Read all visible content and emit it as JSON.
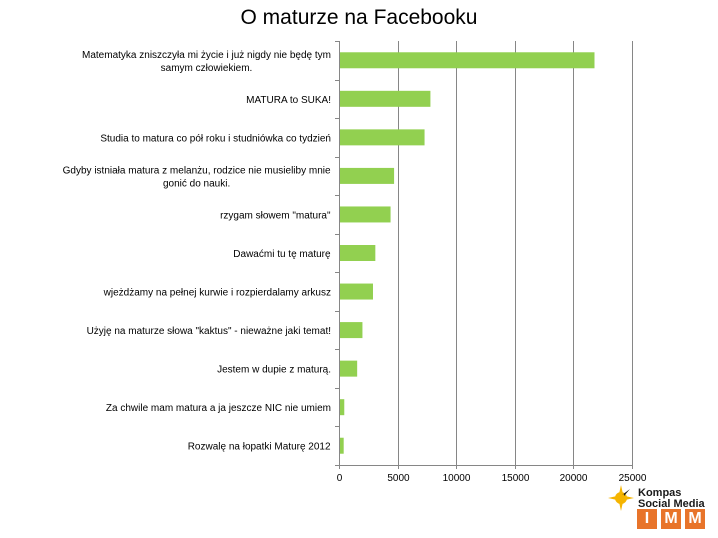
{
  "chart_data": {
    "type": "bar",
    "orientation": "horizontal",
    "title": "O maturze na Facebooku",
    "categories": [
      [
        "Matematyka zniszczyła mi życie i już nigdy nie będę tym",
        "samym człowiekiem."
      ],
      [
        "MATURA to SUKA!"
      ],
      [
        "Studia to matura co pół roku i studniówka co tydzień"
      ],
      [
        "Gdyby istniała matura z melanżu, rodzice nie musieliby mnie",
        "gonić do nauki."
      ],
      [
        "rzygam słowem \"matura\""
      ],
      [
        "Dawaćmi tu tę maturę"
      ],
      [
        "wjeżdżamy na pełnej kurwie i rozpierdalamy arkusz"
      ],
      [
        "Użyję na maturze słowa \"kaktus\" - nieważne jaki temat!"
      ],
      [
        "Jestem w dupie z maturą."
      ],
      [
        "Za chwile mam matura a ja jeszcze NIC nie umiem"
      ],
      [
        "Rozwalę na łopatki Maturę 2012"
      ]
    ],
    "values": [
      21800,
      7800,
      7300,
      4700,
      4400,
      3100,
      2900,
      2000,
      1550,
      450,
      400
    ],
    "xlim": [
      0,
      25000
    ],
    "xticks": [
      0,
      5000,
      10000,
      15000,
      20000,
      25000
    ],
    "grid": "vertical",
    "legend": "none",
    "bar_color": "#92d050",
    "axis_color": "#868686"
  },
  "logo": {
    "line1": "Kompas",
    "line2": "Social Media",
    "letters": [
      "I",
      "M",
      "M"
    ],
    "accent": "#e8742a",
    "sun": "#f5b400"
  }
}
